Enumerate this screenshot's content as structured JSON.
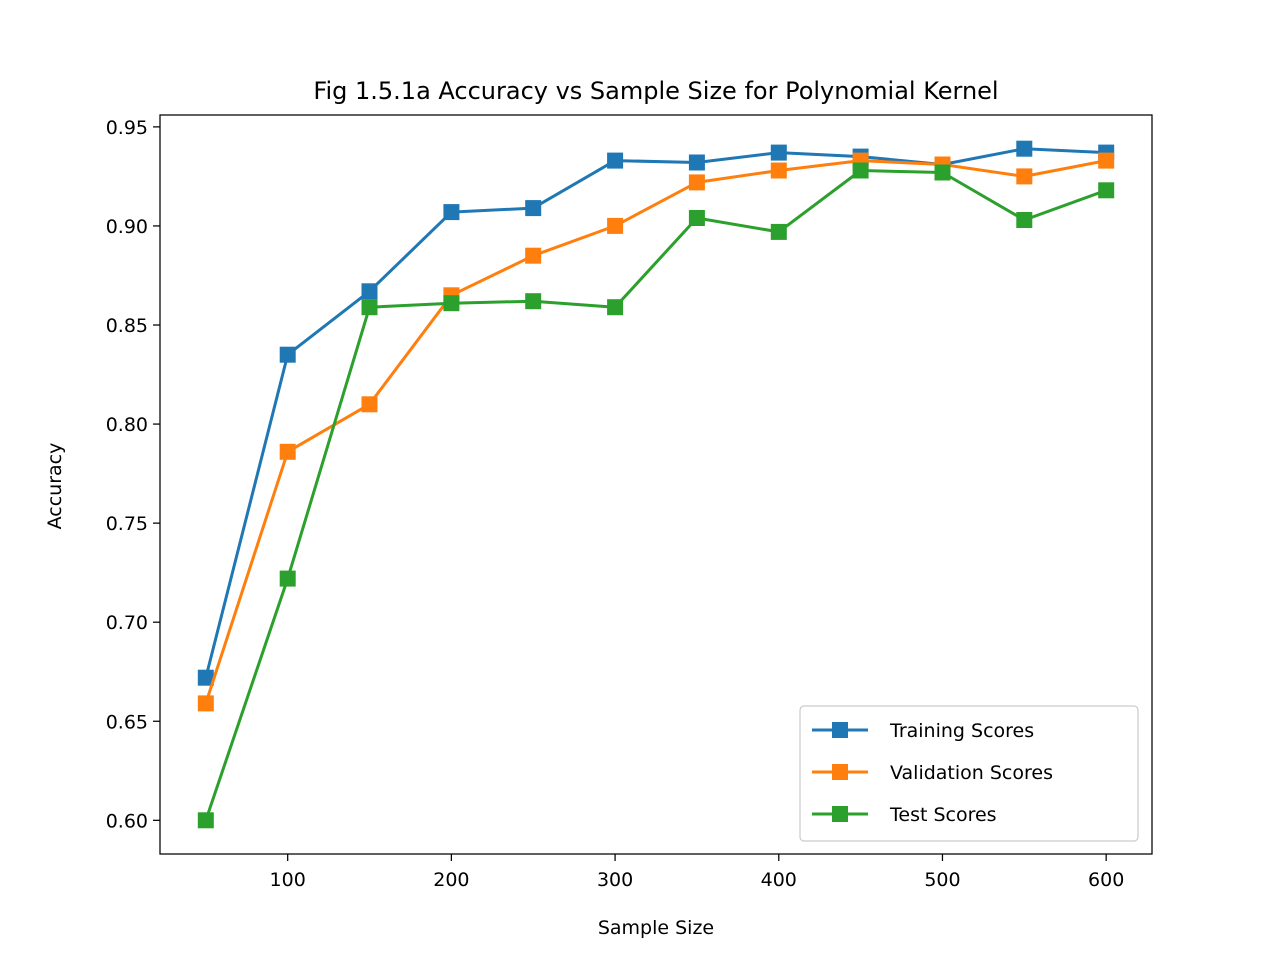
{
  "chart_data": {
    "type": "line",
    "title": "Fig 1.5.1a Accuracy vs Sample Size for Polynomial Kernel",
    "xlabel": "Sample Size",
    "ylabel": "Accuracy",
    "xlim": [
      22,
      628
    ],
    "ylim": [
      0.583,
      0.956
    ],
    "xticks": [
      100,
      200,
      300,
      400,
      500,
      600
    ],
    "xtick_labels": [
      "100",
      "200",
      "300",
      "400",
      "500",
      "600"
    ],
    "yticks": [
      0.6,
      0.65,
      0.7,
      0.75,
      0.8,
      0.85,
      0.9,
      0.95
    ],
    "ytick_labels": [
      "0.60",
      "0.65",
      "0.70",
      "0.75",
      "0.80",
      "0.85",
      "0.90",
      "0.95"
    ],
    "grid": false,
    "legend_position": "lower-right",
    "marker": "square",
    "x": [
      50,
      100,
      150,
      200,
      250,
      300,
      350,
      400,
      450,
      500,
      550,
      600
    ],
    "series": [
      {
        "name": "Training Scores",
        "color": "#1f77b4",
        "values": [
          0.672,
          0.835,
          0.867,
          0.907,
          0.909,
          0.933,
          0.932,
          0.937,
          0.935,
          0.931,
          0.939,
          0.937
        ]
      },
      {
        "name": "Validation Scores",
        "color": "#ff7f0e",
        "values": [
          0.659,
          0.786,
          0.81,
          0.865,
          0.885,
          0.9,
          0.922,
          0.928,
          0.933,
          0.931,
          0.925,
          0.933
        ]
      },
      {
        "name": "Test Scores",
        "color": "#2ca02c",
        "values": [
          0.6,
          0.722,
          0.859,
          0.861,
          0.862,
          0.859,
          0.904,
          0.897,
          0.928,
          0.927,
          0.903,
          0.918
        ]
      }
    ]
  }
}
